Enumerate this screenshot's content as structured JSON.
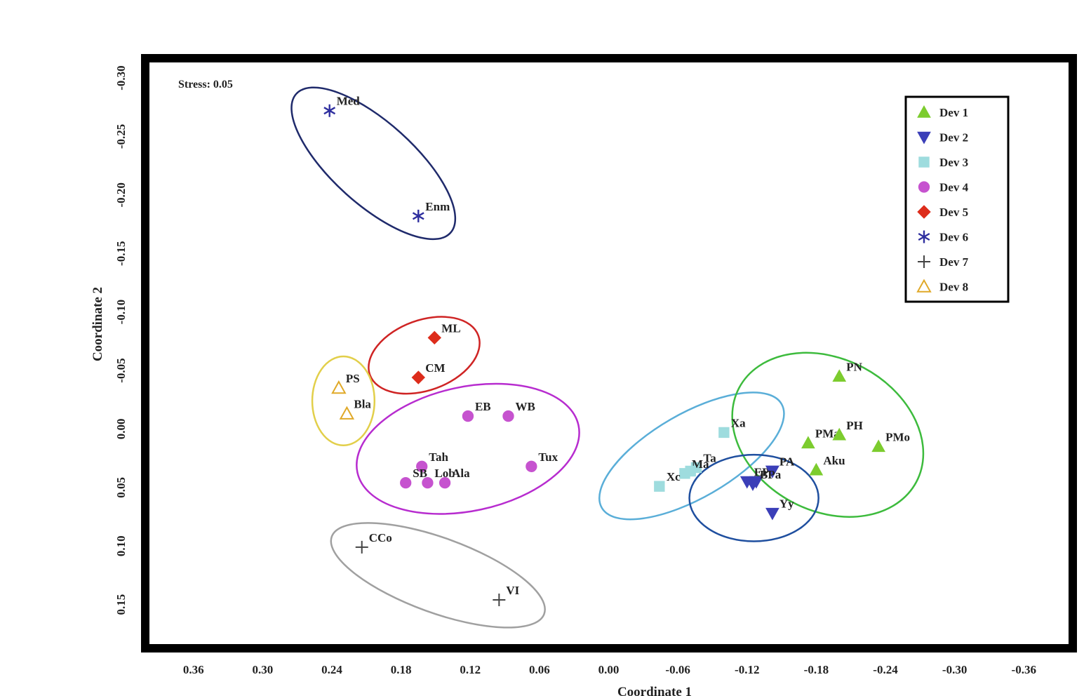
{
  "chart_data": {
    "type": "scatter",
    "annotation": "Stress: 0.05",
    "xlabel": "Coordinate 1",
    "ylabel": "Coordinate 2",
    "xlim": [
      0.4,
      -0.4
    ],
    "ylim": [
      0.185,
      -0.315
    ],
    "x_reversed": true,
    "y_reversed": true,
    "grid": false,
    "legend_position": "top-right",
    "x_ticks": [
      {
        "value": 0.36,
        "label": "0.36"
      },
      {
        "value": 0.3,
        "label": "0.30"
      },
      {
        "value": 0.24,
        "label": "0.24"
      },
      {
        "value": 0.18,
        "label": "0.18"
      },
      {
        "value": 0.12,
        "label": "0.12"
      },
      {
        "value": 0.06,
        "label": "0.06"
      },
      {
        "value": 0.0,
        "label": "0.00"
      },
      {
        "value": -0.06,
        "label": "-0.06"
      },
      {
        "value": -0.12,
        "label": "-0.12"
      },
      {
        "value": -0.18,
        "label": "-0.18"
      },
      {
        "value": -0.24,
        "label": "-0.24"
      },
      {
        "value": -0.3,
        "label": "-0.30"
      },
      {
        "value": -0.36,
        "label": "-0.36"
      }
    ],
    "y_ticks": [
      {
        "value": -0.3,
        "label": "-0.30"
      },
      {
        "value": -0.25,
        "label": "-0.25"
      },
      {
        "value": -0.2,
        "label": "-0.20"
      },
      {
        "value": -0.15,
        "label": "-0.15"
      },
      {
        "value": -0.1,
        "label": "-0.10"
      },
      {
        "value": -0.05,
        "label": "-0.05"
      },
      {
        "value": 0.0,
        "label": "0.00"
      },
      {
        "value": 0.05,
        "label": "0.05"
      },
      {
        "value": 0.1,
        "label": "0.10"
      },
      {
        "value": 0.15,
        "label": "0.15"
      }
    ],
    "series": [
      {
        "name": "Dev 1",
        "marker": "triangle-up",
        "filled": true,
        "color": "#7ccc2e",
        "points": [
          {
            "label": "PN",
            "x": -0.2,
            "y": -0.045
          },
          {
            "label": "PMa",
            "x": -0.173,
            "y": 0.012
          },
          {
            "label": "PH",
            "x": -0.2,
            "y": 0.005
          },
          {
            "label": "PMo",
            "x": -0.234,
            "y": 0.015
          },
          {
            "label": "Aku",
            "x": -0.18,
            "y": 0.035
          }
        ]
      },
      {
        "name": "Dev 2",
        "marker": "triangle-down",
        "filled": true,
        "color": "#3b3fb8",
        "points": [
          {
            "label": "EP",
            "x": -0.12,
            "y": 0.045
          },
          {
            "label": "",
            "x": -0.128,
            "y": 0.045
          },
          {
            "label": "",
            "x": -0.142,
            "y": 0.036
          },
          {
            "label": "PA",
            "x": -0.142,
            "y": 0.036
          },
          {
            "label": "BPa",
            "x": -0.125,
            "y": 0.047
          },
          {
            "label": "Yy",
            "x": -0.142,
            "y": 0.072
          }
        ]
      },
      {
        "name": "Dev 3",
        "marker": "square",
        "filled": true,
        "color": "#9edcde",
        "points": [
          {
            "label": "Xa",
            "x": -0.1,
            "y": 0.003
          },
          {
            "label": "Ta",
            "x": -0.076,
            "y": 0.033
          },
          {
            "label": "Ma",
            "x": -0.066,
            "y": 0.038
          },
          {
            "label": "Xc",
            "x": -0.044,
            "y": 0.049
          },
          {
            "label": "",
            "x": -0.071,
            "y": 0.036
          }
        ]
      },
      {
        "name": "Dev 4",
        "marker": "circle",
        "filled": true,
        "color": "#c653cf",
        "points": [
          {
            "label": "EB",
            "x": 0.122,
            "y": -0.011
          },
          {
            "label": "WB",
            "x": 0.087,
            "y": -0.011
          },
          {
            "label": "Tah",
            "x": 0.162,
            "y": 0.032
          },
          {
            "label": "SB",
            "x": 0.176,
            "y": 0.046
          },
          {
            "label": "Lob",
            "x": 0.157,
            "y": 0.046
          },
          {
            "label": "Ala",
            "x": 0.142,
            "y": 0.046
          },
          {
            "label": "Tux",
            "x": 0.067,
            "y": 0.032
          }
        ]
      },
      {
        "name": "Dev 5",
        "marker": "diamond",
        "filled": true,
        "color": "#dd2c1b",
        "points": [
          {
            "label": "ML",
            "x": 0.151,
            "y": -0.078
          },
          {
            "label": "CM",
            "x": 0.165,
            "y": -0.044
          }
        ]
      },
      {
        "name": "Dev 6",
        "marker": "asterisk",
        "filled": false,
        "color": "#2f2f9f",
        "points": [
          {
            "label": "Med",
            "x": 0.242,
            "y": -0.272
          },
          {
            "label": "Enm",
            "x": 0.165,
            "y": -0.182
          }
        ]
      },
      {
        "name": "Dev 7",
        "marker": "plus",
        "filled": false,
        "color": "#444444",
        "points": [
          {
            "label": "CCo",
            "x": 0.214,
            "y": 0.101
          },
          {
            "label": "VI",
            "x": 0.095,
            "y": 0.146
          }
        ]
      },
      {
        "name": "Dev 8",
        "marker": "triangle-up",
        "filled": false,
        "color": "#e0a928",
        "points": [
          {
            "label": "PS",
            "x": 0.234,
            "y": -0.035
          },
          {
            "label": "Bla",
            "x": 0.227,
            "y": -0.013
          }
        ]
      }
    ],
    "clusters": [
      {
        "name": "Dev 6",
        "color": "#1f2a6b",
        "cx": 0.204,
        "cy": -0.227,
        "rx": 0.09,
        "ry": 0.035,
        "rot": 42
      },
      {
        "name": "Dev 5",
        "color": "#cf2424",
        "cx": 0.16,
        "cy": -0.063,
        "rx": 0.05,
        "ry": 0.03,
        "rot": -20
      },
      {
        "name": "Dev 8",
        "color": "#e2cf4a",
        "cx": 0.23,
        "cy": -0.024,
        "rx": 0.027,
        "ry": 0.038,
        "rot": 0
      },
      {
        "name": "Dev 4",
        "color": "#b72ccf",
        "cx": 0.122,
        "cy": 0.017,
        "rx": 0.098,
        "ry": 0.053,
        "rot": -12
      },
      {
        "name": "Dev 7",
        "color": "#a0a0a0",
        "cx": 0.148,
        "cy": 0.125,
        "rx": 0.098,
        "ry": 0.032,
        "rot": 20
      },
      {
        "name": "Dev 3",
        "color": "#5aaed8",
        "cx": -0.072,
        "cy": 0.023,
        "rx": 0.09,
        "ry": 0.036,
        "rot": -30
      },
      {
        "name": "Dev 1",
        "color": "#3dbb3d",
        "cx": -0.19,
        "cy": 0.005,
        "rx": 0.087,
        "ry": 0.065,
        "rot": 28
      },
      {
        "name": "Dev 2",
        "color": "#1f4f9f",
        "cx": -0.126,
        "cy": 0.059,
        "rx": 0.056,
        "ry": 0.037,
        "rot": 0
      }
    ]
  }
}
